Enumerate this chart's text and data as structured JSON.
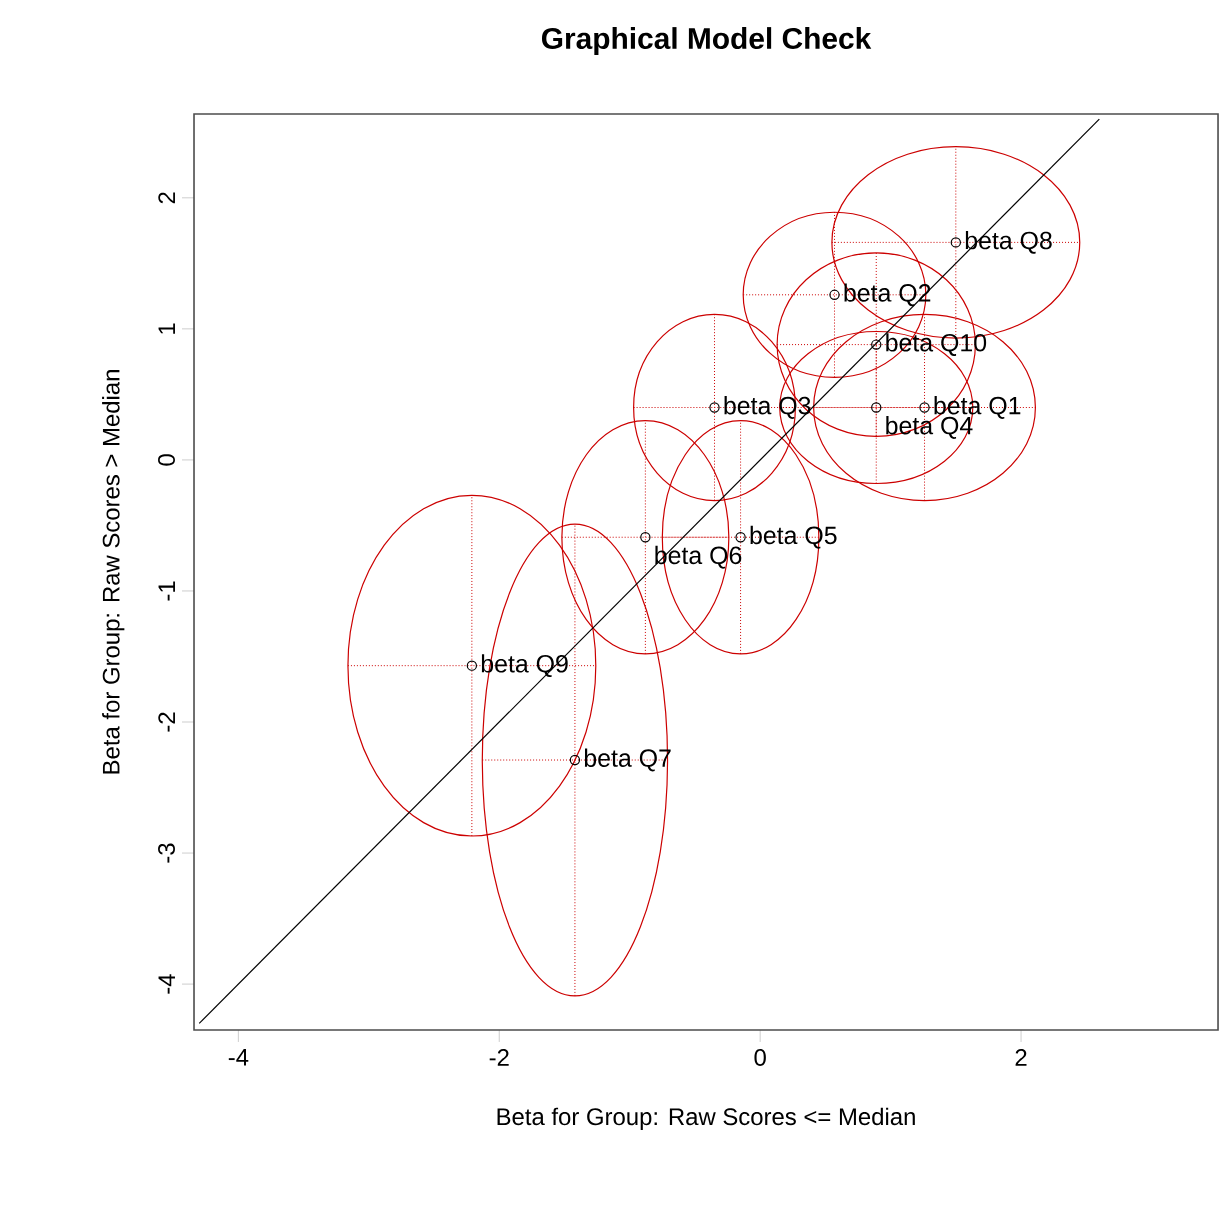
{
  "chart_data": {
    "type": "scatter",
    "title": "Graphical Model Check",
    "xlabel": "Beta for Group: Raw Scores <= Median",
    "ylabel": "Beta for Group: Raw Scores > Median",
    "xlim": [
      -4.34,
      3.51
    ],
    "ylim": [
      -4.35,
      2.64
    ],
    "xticks": [
      -4,
      -2,
      0,
      2
    ],
    "yticks": [
      -4,
      -3,
      -2,
      -1,
      0,
      1,
      2
    ],
    "grid": false,
    "series": [
      {
        "type": "scatter",
        "color": "#000000",
        "marker": "circle",
        "x": [
          1.26,
          0.57,
          -0.35,
          0.89,
          -0.15,
          -0.88,
          -1.42,
          1.5,
          -2.21,
          0.89
        ],
        "values": [
          0.4,
          1.26,
          0.4,
          0.4,
          -0.59,
          -0.59,
          -2.29,
          1.66,
          -1.57,
          0.88
        ],
        "xerrors": [
          0.85,
          0.7,
          0.62,
          0.74,
          0.6,
          0.64,
          0.71,
          0.95,
          0.95,
          0.76
        ],
        "errors": [
          0.71,
          0.63,
          0.71,
          0.58,
          0.89,
          0.89,
          1.8,
          0.73,
          1.3,
          0.7
        ]
      },
      {
        "type": "line",
        "color": "#000000",
        "line_style": "solid",
        "marker": "none",
        "x": [
          -4.3,
          2.6
        ],
        "values": [
          -4.3,
          2.6
        ]
      }
    ],
    "annotations": [
      {
        "text": "beta Q1",
        "x": 1.26,
        "y": 0.4
      },
      {
        "text": "beta Q2",
        "x": 0.57,
        "y": 1.26
      },
      {
        "text": "beta Q3",
        "x": -0.35,
        "y": 0.4
      },
      {
        "text": "beta Q4",
        "x": 0.89,
        "y": 0.4
      },
      {
        "text": "beta Q5",
        "x": -0.15,
        "y": -0.59
      },
      {
        "text": "beta Q6",
        "x": -0.88,
        "y": -0.59
      },
      {
        "text": "beta Q7",
        "x": -1.42,
        "y": -2.29
      },
      {
        "text": "beta Q8",
        "x": 1.5,
        "y": 1.66
      },
      {
        "text": "beta Q9",
        "x": -2.21,
        "y": -1.57
      },
      {
        "text": "beta Q10",
        "x": 0.89,
        "y": 0.88
      }
    ]
  }
}
